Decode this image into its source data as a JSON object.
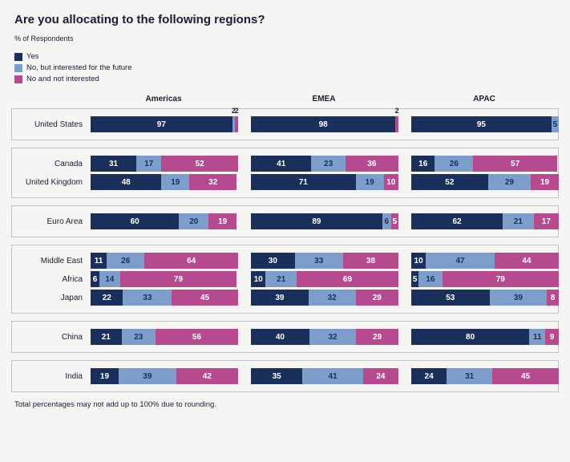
{
  "title": "Are you allocating to the following regions?",
  "subtitle": "% of Respondents",
  "legend": [
    {
      "label": "Yes",
      "color": "#1b2f5b"
    },
    {
      "label": "No, but interested for the future",
      "color": "#7d9dcb"
    },
    {
      "label": "No and not interested",
      "color": "#b54a8e"
    }
  ],
  "footnote": "Total percentages may not add up to 100% due to rounding.",
  "colors": {
    "background": "#f5f5f3",
    "text": "#1b1b35",
    "box_border": "#c2c2c2",
    "label_on_dark": "#ffffff"
  },
  "chart_data": {
    "type": "bar",
    "variant": "horizontal-stacked",
    "unit": "%",
    "columns": [
      "Americas",
      "EMEA",
      "APAC"
    ],
    "series_names": [
      "Yes",
      "No, but interested for the future",
      "No and not interested"
    ],
    "legend_position": "top-left",
    "xlim": [
      0,
      100
    ],
    "groups": [
      {
        "rows": [
          {
            "label": "United States",
            "values": [
              [
                97,
                2,
                2
              ],
              [
                98,
                0,
                2
              ],
              [
                95,
                5,
                0
              ]
            ]
          }
        ]
      },
      {
        "rows": [
          {
            "label": "Canada",
            "values": [
              [
                31,
                17,
                52
              ],
              [
                41,
                23,
                36
              ],
              [
                16,
                26,
                57
              ]
            ]
          },
          {
            "label": "United Kingdom",
            "values": [
              [
                48,
                19,
                32
              ],
              [
                71,
                19,
                10
              ],
              [
                52,
                29,
                19
              ]
            ]
          }
        ]
      },
      {
        "rows": [
          {
            "label": "Euro Area",
            "values": [
              [
                60,
                20,
                19
              ],
              [
                89,
                6,
                5
              ],
              [
                62,
                21,
                17
              ]
            ]
          }
        ]
      },
      {
        "rows": [
          {
            "label": "Middle East",
            "values": [
              [
                11,
                26,
                64
              ],
              [
                30,
                33,
                38
              ],
              [
                10,
                47,
                44
              ]
            ]
          },
          {
            "label": "Africa",
            "values": [
              [
                6,
                14,
                79
              ],
              [
                10,
                21,
                69
              ],
              [
                5,
                16,
                79
              ]
            ]
          },
          {
            "label": "Japan",
            "values": [
              [
                22,
                33,
                45
              ],
              [
                39,
                32,
                29
              ],
              [
                53,
                39,
                8
              ]
            ]
          }
        ]
      },
      {
        "rows": [
          {
            "label": "China",
            "values": [
              [
                21,
                23,
                56
              ],
              [
                40,
                32,
                29
              ],
              [
                80,
                11,
                9
              ]
            ]
          }
        ]
      },
      {
        "rows": [
          {
            "label": "India",
            "values": [
              [
                19,
                39,
                42
              ],
              [
                35,
                41,
                24
              ],
              [
                24,
                31,
                45
              ]
            ]
          }
        ]
      }
    ]
  }
}
